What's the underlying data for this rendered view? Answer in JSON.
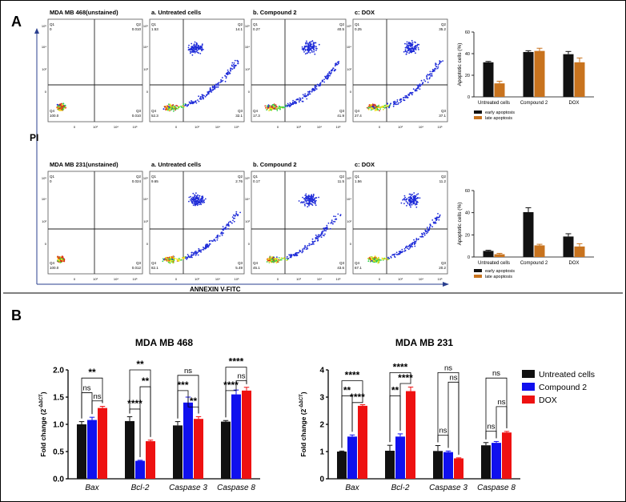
{
  "panel_labels": {
    "a": "A",
    "b": "B"
  },
  "flow": {
    "y_axis_title": "PI",
    "x_axis_title": "ANNEXIN V-FITC",
    "rows": [
      {
        "cell_line": "MDA MB 468",
        "plots": [
          {
            "title": "MDA MB 468(unstained)",
            "q1_label": "Q1",
            "q1": "0",
            "q2_label": "Q2",
            "q2": "0.010",
            "q3_label": "Q3",
            "q3": "0.010",
            "q4_label": "Q4",
            "q4": "100.0"
          },
          {
            "title": "a. Untreated cells",
            "q1_label": "Q1",
            "q1": "1.53",
            "q2_label": "Q2",
            "q2": "14.1",
            "q3_label": "Q3",
            "q3": "32.1",
            "q4_label": "Q4",
            "q4": "52.3"
          },
          {
            "title": "b. Compound 2",
            "q1_label": "Q1",
            "q1": "0.27",
            "q2_label": "Q2",
            "q2": "40.5",
            "q3_label": "Q3",
            "q3": "41.9",
            "q4_label": "Q4",
            "q4": "17.3"
          },
          {
            "title": "c: DOX",
            "q1_label": "Q1",
            "q1": "0.25",
            "q2_label": "Q2",
            "q2": "35.2",
            "q3_label": "Q3",
            "q3": "37.1",
            "q4_label": "Q4",
            "q4": "27.4"
          }
        ]
      },
      {
        "cell_line": "MDA MB 231",
        "plots": [
          {
            "title": "MDA MB 231(unstained)",
            "q1_label": "Q1",
            "q1": "0",
            "q2_label": "Q2",
            "q2": "0.024",
            "q3_label": "Q3",
            "q3": "0.012",
            "q4_label": "Q4",
            "q4": "100.0"
          },
          {
            "title": "a. Untreated cells",
            "q1_label": "Q1",
            "q1": "9.65",
            "q2_label": "Q2",
            "q2": "2.76",
            "q3_label": "Q3",
            "q3": "5.49",
            "q4_label": "Q4",
            "q4": "82.1"
          },
          {
            "title": "b. Compound 2",
            "q1_label": "Q1",
            "q1": "0.17",
            "q2_label": "Q2",
            "q2": "11.5",
            "q3_label": "Q3",
            "q3": "43.6",
            "q4_label": "Q4",
            "q4": "45.1"
          },
          {
            "title": "c: DOX",
            "q1_label": "Q1",
            "q1": "1.56",
            "q2_label": "Q2",
            "q2": "11.2",
            "q3_label": "Q3",
            "q3": "20.2",
            "q4_label": "Q4",
            "q4": "67.1"
          }
        ]
      }
    ]
  },
  "colors": {
    "black": "#111111",
    "orange": "#c8731e",
    "blue": "#1010ee",
    "red": "#ee1111",
    "frame": "#555555",
    "density_low": "#1e2bd8",
    "density_mid": "#2fd24a",
    "density_high": "#f2e21a",
    "density_peak": "#e0301a"
  },
  "chart_data": [
    {
      "type": "bar",
      "id": "apoptosis_468",
      "ylabel": "Apoptotic cells (%)",
      "categories": [
        "Untreated cells",
        "Compound 2",
        "DOX"
      ],
      "ylim": [
        0,
        60
      ],
      "yticks": [
        "0",
        "20",
        "40",
        "60"
      ],
      "series": [
        {
          "name": "early apoptosis",
          "color": "#111111",
          "values": [
            32,
            41.5,
            39.5
          ],
          "errors": [
            0.8,
            1.2,
            2.5
          ]
        },
        {
          "name": "late apoptosis",
          "color": "#c8731e",
          "values": [
            12.5,
            42.5,
            32
          ],
          "errors": [
            2.0,
            2.5,
            4.0
          ]
        }
      ]
    },
    {
      "type": "bar",
      "id": "apoptosis_231",
      "ylabel": "Apoptotic cells (%)",
      "categories": [
        "Untreated cells",
        "Compound 2",
        "DOX"
      ],
      "ylim": [
        0,
        60
      ],
      "yticks": [
        "0",
        "20",
        "40",
        "60"
      ],
      "series": [
        {
          "name": "early apoptosis",
          "color": "#111111",
          "values": [
            5.5,
            40.5,
            18.5
          ],
          "errors": [
            0.6,
            4.0,
            2.5
          ]
        },
        {
          "name": "late apoptosis",
          "color": "#c8731e",
          "values": [
            2.5,
            10.5,
            9.5
          ],
          "errors": [
            0.8,
            1.0,
            2.5
          ]
        }
      ]
    },
    {
      "type": "bar",
      "id": "fold_468",
      "title": "MDA MB 468",
      "ylabel": "Fold change (2-ΔΔCT)",
      "ylabel_main": "Fold change (2",
      "ylabel_sup": "-ΔΔCT",
      "ylabel_end": ")",
      "categories": [
        "Bax",
        "Bcl-2",
        "Caspase 3",
        "Caspase 8"
      ],
      "ylim": [
        0,
        2.0
      ],
      "yticks": [
        "0.0",
        "0.5",
        "1.0",
        "1.5",
        "2.0"
      ],
      "series": [
        {
          "name": "Untreated cells",
          "color": "#111111",
          "values": [
            1.0,
            1.06,
            0.98,
            1.05
          ],
          "errors": [
            0.05,
            0.08,
            0.07,
            0.02
          ]
        },
        {
          "name": "Compound 2",
          "color": "#1010ee",
          "values": [
            1.08,
            0.33,
            1.4,
            1.55
          ],
          "errors": [
            0.05,
            0.01,
            0.1,
            0.08
          ]
        },
        {
          "name": "DOX",
          "color": "#ee1111",
          "values": [
            1.3,
            0.69,
            1.1,
            1.62
          ],
          "errors": [
            0.03,
            0.02,
            0.04,
            0.06
          ]
        }
      ],
      "significance": [
        {
          "text": "ns",
          "cat": 0,
          "from": 0,
          "to": 1,
          "level": 1.58
        },
        {
          "text": "ns",
          "cat": 0,
          "from": 1,
          "to": 2,
          "level": 1.43
        },
        {
          "text": "**",
          "cat": 0,
          "from": 0,
          "to": 2,
          "level": 1.85
        },
        {
          "text": "****",
          "cat": 1,
          "from": 0,
          "to": 1,
          "level": 1.28
        },
        {
          "text": "**",
          "cat": 1,
          "from": 1,
          "to": 2,
          "level": 1.69
        },
        {
          "text": "**",
          "cat": 1,
          "from": 0,
          "to": 2,
          "level": 2.0
        },
        {
          "text": "***",
          "cat": 2,
          "from": 0,
          "to": 1,
          "level": 1.62
        },
        {
          "text": "**",
          "cat": 2,
          "from": 1,
          "to": 2,
          "level": 1.32
        },
        {
          "text": "ns",
          "cat": 2,
          "from": 0,
          "to": 2,
          "level": 1.9
        },
        {
          "text": "****",
          "cat": 3,
          "from": 0,
          "to": 1,
          "level": 1.62
        },
        {
          "text": "ns",
          "cat": 3,
          "from": 1,
          "to": 2,
          "level": 1.8
        },
        {
          "text": "****",
          "cat": 3,
          "from": 0,
          "to": 2,
          "level": 2.05
        }
      ]
    },
    {
      "type": "bar",
      "id": "fold_231",
      "title": "MDA MB 231",
      "ylabel": "Fold change (2-ΔΔCT)",
      "ylabel_main": "Fold change (2",
      "ylabel_sup": "-ΔΔCT",
      "ylabel_end": ")",
      "categories": [
        "Bax",
        "Bcl-2",
        "Caspase 3",
        "Caspase 8"
      ],
      "ylim": [
        0,
        4
      ],
      "yticks": [
        "0",
        "1",
        "2",
        "3",
        "4"
      ],
      "legend": "right",
      "series": [
        {
          "name": "Untreated cells",
          "color": "#111111",
          "values": [
            1.0,
            1.03,
            1.02,
            1.23
          ],
          "errors": [
            0.02,
            0.2,
            0.2,
            0.1
          ]
        },
        {
          "name": "Compound 2",
          "color": "#1010ee",
          "values": [
            1.55,
            1.55,
            0.98,
            1.32
          ],
          "errors": [
            0.06,
            0.1,
            0.04,
            0.05
          ]
        },
        {
          "name": "DOX",
          "color": "#ee1111",
          "values": [
            2.68,
            3.22,
            0.75,
            1.7
          ],
          "errors": [
            0.04,
            0.15,
            0.02,
            0.04
          ]
        }
      ],
      "significance": [
        {
          "text": "**",
          "cat": 0,
          "from": 0,
          "to": 1,
          "level": 3.05
        },
        {
          "text": "****",
          "cat": 0,
          "from": 1,
          "to": 2,
          "level": 2.8
        },
        {
          "text": "****",
          "cat": 0,
          "from": 0,
          "to": 2,
          "level": 3.6
        },
        {
          "text": "**",
          "cat": 1,
          "from": 0,
          "to": 1,
          "level": 3.05
        },
        {
          "text": "****",
          "cat": 1,
          "from": 1,
          "to": 2,
          "level": 3.5
        },
        {
          "text": "****",
          "cat": 1,
          "from": 0,
          "to": 2,
          "level": 3.9
        },
        {
          "text": "ns",
          "cat": 2,
          "from": 0,
          "to": 1,
          "level": 1.6
        },
        {
          "text": "ns",
          "cat": 2,
          "from": 1,
          "to": 2,
          "level": 3.55
        },
        {
          "text": "ns",
          "cat": 2,
          "from": 0,
          "to": 2,
          "level": 3.9
        },
        {
          "text": "ns",
          "cat": 3,
          "from": 0,
          "to": 1,
          "level": 1.75
        },
        {
          "text": "ns",
          "cat": 3,
          "from": 1,
          "to": 2,
          "level": 2.65
        },
        {
          "text": "ns",
          "cat": 3,
          "from": 0,
          "to": 2,
          "level": 3.7
        }
      ]
    }
  ]
}
